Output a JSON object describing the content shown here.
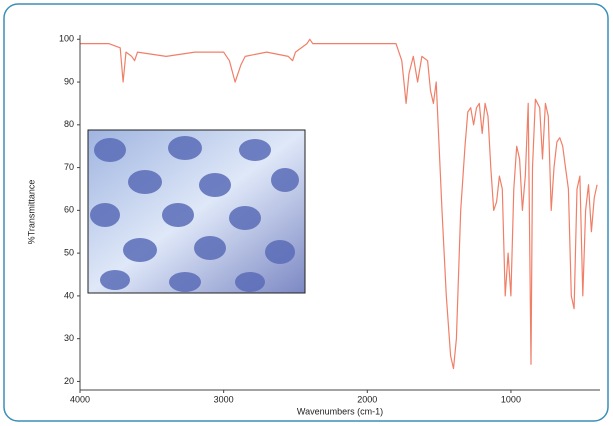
{
  "chart_data": {
    "type": "line",
    "x_label": "Wavenumbers (cm-1)",
    "y_label": "%Transmittance",
    "x": [
      4000,
      3800,
      3720,
      3700,
      3680,
      3640,
      3620,
      3600,
      3400,
      3200,
      3000,
      2960,
      2920,
      2880,
      2850,
      2700,
      2550,
      2520,
      2500,
      2420,
      2400,
      2380,
      2300,
      2000,
      1850,
      1800,
      1760,
      1730,
      1710,
      1680,
      1650,
      1620,
      1580,
      1560,
      1540,
      1520,
      1500,
      1480,
      1450,
      1420,
      1400,
      1380,
      1350,
      1320,
      1300,
      1280,
      1260,
      1240,
      1220,
      1200,
      1180,
      1160,
      1140,
      1120,
      1100,
      1080,
      1060,
      1040,
      1020,
      1000,
      980,
      960,
      940,
      920,
      900,
      880,
      860,
      850,
      830,
      800,
      780,
      760,
      740,
      720,
      700,
      680,
      660,
      640,
      620,
      600,
      580,
      560,
      540,
      520,
      500,
      480,
      460,
      440,
      420,
      400
    ],
    "values": [
      99,
      99,
      98,
      90,
      97,
      96,
      95,
      97,
      96,
      97,
      97,
      95,
      90,
      94,
      96,
      97,
      96,
      95,
      97,
      99,
      100,
      99,
      99,
      99,
      99,
      99,
      95,
      85,
      92,
      96,
      90,
      96,
      95,
      88,
      85,
      90,
      75,
      60,
      40,
      26,
      23,
      30,
      60,
      75,
      83,
      84,
      80,
      84,
      85,
      78,
      85,
      82,
      70,
      60,
      62,
      68,
      65,
      40,
      50,
      40,
      65,
      75,
      72,
      60,
      68,
      85,
      24,
      70,
      86,
      84,
      72,
      85,
      82,
      60,
      70,
      76,
      77,
      75,
      70,
      65,
      40,
      37,
      65,
      68,
      40,
      60,
      66,
      55,
      63,
      66
    ],
    "color": "#f07f68",
    "xlim": [
      4000,
      380
    ],
    "ylim": [
      18,
      101
    ],
    "xticks": [
      4000,
      3000,
      2000,
      1000
    ],
    "yticks": [
      100,
      90,
      80,
      70,
      60,
      50,
      40,
      30,
      20
    ],
    "grid": false
  }
}
